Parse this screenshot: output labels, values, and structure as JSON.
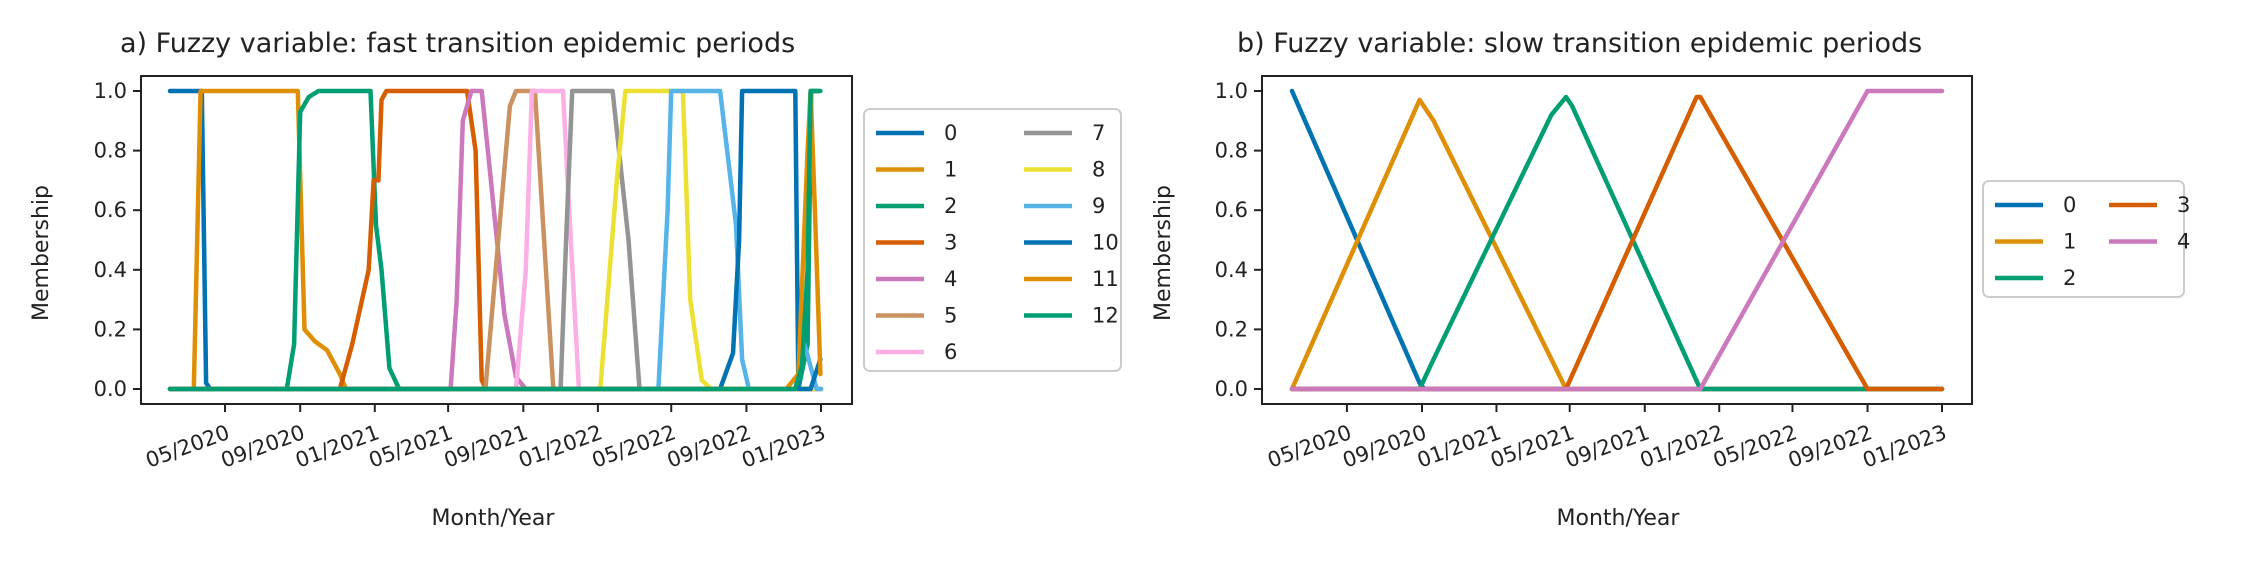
{
  "chart_data": [
    {
      "type": "line",
      "title": "a) Fuzzy variable: fast transition epidemic periods",
      "xlabel": "Month/Year",
      "ylabel": "Membership",
      "x_range": [
        "2020-02-01",
        "2023-01-01"
      ],
      "x_ticks": [
        "05/2020",
        "09/2020",
        "01/2021",
        "05/2021",
        "09/2021",
        "01/2022",
        "05/2022",
        "09/2022",
        "01/2023"
      ],
      "ylim": [
        0,
        1
      ],
      "y_ticks": [
        "0.0",
        "0.2",
        "0.4",
        "0.6",
        "0.8",
        "1.0"
      ],
      "legend": "right, 2 columns",
      "series": [
        {
          "name": "0",
          "color": "#0173b2",
          "points": [
            [
              "2020-02-01",
              1
            ],
            [
              "2020-03-24",
              1
            ],
            [
              "2020-03-31",
              0.02
            ],
            [
              "2020-04-07",
              0
            ],
            [
              "2023-01-01",
              0
            ]
          ]
        },
        {
          "name": "1",
          "color": "#de8f05",
          "points": [
            [
              "2020-02-01",
              0
            ],
            [
              "2020-03-11",
              0
            ],
            [
              "2020-03-22",
              1
            ],
            [
              "2020-08-28",
              1
            ],
            [
              "2020-09-08",
              0.2
            ],
            [
              "2020-09-25",
              0.16
            ],
            [
              "2020-10-15",
              0.13
            ],
            [
              "2020-11-05",
              0.05
            ],
            [
              "2020-11-15",
              0
            ],
            [
              "2023-01-01",
              0
            ]
          ]
        },
        {
          "name": "2",
          "color": "#029e73",
          "points": [
            [
              "2020-02-01",
              0
            ],
            [
              "2020-08-10",
              0
            ],
            [
              "2020-08-22",
              0.15
            ],
            [
              "2020-09-01",
              0.93
            ],
            [
              "2020-09-15",
              0.98
            ],
            [
              "2020-10-01",
              1
            ],
            [
              "2020-12-25",
              1
            ],
            [
              "2021-01-03",
              0.55
            ],
            [
              "2021-01-12",
              0.4
            ],
            [
              "2021-01-25",
              0.07
            ],
            [
              "2021-02-10",
              0
            ],
            [
              "2022-11-25",
              0
            ],
            [
              "2022-12-10",
              0.15
            ],
            [
              "2022-12-16",
              1
            ],
            [
              "2022-12-28",
              1
            ]
          ]
        },
        {
          "name": "3",
          "color": "#d55e00",
          "points": [
            [
              "2020-02-01",
              0
            ],
            [
              "2020-11-05",
              0
            ],
            [
              "2020-11-25",
              0.15
            ],
            [
              "2020-12-22",
              0.4
            ],
            [
              "2020-12-30",
              0.7
            ],
            [
              "2021-01-07",
              0.7
            ],
            [
              "2021-01-12",
              0.97
            ],
            [
              "2021-01-20",
              1
            ],
            [
              "2021-06-01",
              1
            ],
            [
              "2021-06-15",
              0.8
            ],
            [
              "2021-06-25",
              0.03
            ],
            [
              "2021-07-02",
              0
            ],
            [
              "2023-01-01",
              0
            ]
          ]
        },
        {
          "name": "4",
          "color": "#cc78bc",
          "points": [
            [
              "2020-02-01",
              0
            ],
            [
              "2021-05-05",
              0
            ],
            [
              "2021-05-15",
              0.3
            ],
            [
              "2021-05-25",
              0.9
            ],
            [
              "2021-06-08",
              1
            ],
            [
              "2021-06-25",
              1
            ],
            [
              "2021-07-10",
              0.7
            ],
            [
              "2021-08-01",
              0.25
            ],
            [
              "2021-08-20",
              0.04
            ],
            [
              "2021-09-05",
              0
            ],
            [
              "2023-01-01",
              0
            ]
          ]
        },
        {
          "name": "5",
          "color": "#ca9161",
          "points": [
            [
              "2020-02-01",
              0
            ],
            [
              "2021-07-01",
              0
            ],
            [
              "2021-07-20",
              0.45
            ],
            [
              "2021-08-10",
              0.95
            ],
            [
              "2021-08-20",
              1
            ],
            [
              "2021-09-20",
              1
            ],
            [
              "2021-10-05",
              0.5
            ],
            [
              "2021-10-20",
              0
            ],
            [
              "2023-01-01",
              0
            ]
          ]
        },
        {
          "name": "6",
          "color": "#fbafe4",
          "points": [
            [
              "2020-02-01",
              0
            ],
            [
              "2021-08-20",
              0
            ],
            [
              "2021-09-05",
              0.4
            ],
            [
              "2021-09-15",
              1
            ],
            [
              "2021-11-05",
              1
            ],
            [
              "2021-11-15",
              0.6
            ],
            [
              "2021-12-01",
              0
            ],
            [
              "2023-01-01",
              0
            ]
          ]
        },
        {
          "name": "7",
          "color": "#949494",
          "points": [
            [
              "2020-02-01",
              0
            ],
            [
              "2021-11-01",
              0
            ],
            [
              "2021-11-10",
              0.5
            ],
            [
              "2021-11-20",
              1
            ],
            [
              "2022-01-25",
              1
            ],
            [
              "2022-02-20",
              0.5
            ],
            [
              "2022-03-10",
              0
            ],
            [
              "2023-01-01",
              0
            ]
          ]
        },
        {
          "name": "8",
          "color": "#ece133",
          "points": [
            [
              "2020-02-01",
              0
            ],
            [
              "2022-01-05",
              0
            ],
            [
              "2022-02-01",
              0.7
            ],
            [
              "2022-02-15",
              1
            ],
            [
              "2022-05-20",
              1
            ],
            [
              "2022-06-01",
              0.3
            ],
            [
              "2022-06-20",
              0.03
            ],
            [
              "2022-07-05",
              0
            ],
            [
              "2023-01-01",
              0
            ]
          ]
        },
        {
          "name": "9",
          "color": "#56b4e9",
          "points": [
            [
              "2020-02-01",
              0
            ],
            [
              "2022-04-10",
              0
            ],
            [
              "2022-04-25",
              0.6
            ],
            [
              "2022-05-01",
              1
            ],
            [
              "2022-07-20",
              1
            ],
            [
              "2022-08-15",
              0.55
            ],
            [
              "2022-08-25",
              0.1
            ],
            [
              "2022-09-05",
              0
            ],
            [
              "2022-11-20",
              0
            ],
            [
              "2022-12-05",
              0.15
            ],
            [
              "2022-12-25",
              0
            ],
            [
              "2023-01-01",
              0
            ]
          ]
        },
        {
          "name": "10",
          "color": "#0173b2",
          "points": [
            [
              "2020-02-01",
              0
            ],
            [
              "2022-07-20",
              0
            ],
            [
              "2022-08-10",
              0.12
            ],
            [
              "2022-08-20",
              0.5
            ],
            [
              "2022-08-25",
              1
            ],
            [
              "2022-11-20",
              1
            ],
            [
              "2022-11-25",
              0
            ],
            [
              "2022-12-15",
              0
            ],
            [
              "2022-12-31",
              0.1
            ]
          ]
        },
        {
          "name": "11",
          "color": "#de8f05",
          "points": [
            [
              "2020-02-01",
              0
            ],
            [
              "2022-11-05",
              0
            ],
            [
              "2022-11-25",
              0.05
            ],
            [
              "2022-12-10",
              0.8
            ],
            [
              "2022-12-15",
              1
            ],
            [
              "2022-12-22",
              0.6
            ],
            [
              "2022-12-31",
              0.05
            ]
          ]
        },
        {
          "name": "12",
          "color": "#029e73",
          "points": [
            [
              "2020-02-01",
              0
            ],
            [
              "2022-11-20",
              0
            ],
            [
              "2022-12-01",
              0.08
            ],
            [
              "2022-12-10",
              0.4
            ],
            [
              "2022-12-15",
              1
            ],
            [
              "2022-12-31",
              1
            ]
          ]
        }
      ]
    },
    {
      "type": "line",
      "title": "b) Fuzzy variable: slow transition epidemic periods",
      "xlabel": "Month/Year",
      "ylabel": "Membership",
      "x_range": [
        "2020-02-01",
        "2023-01-01"
      ],
      "x_ticks": [
        "05/2020",
        "09/2020",
        "01/2021",
        "05/2021",
        "09/2021",
        "01/2022",
        "05/2022",
        "09/2022",
        "01/2023"
      ],
      "ylim": [
        0,
        1
      ],
      "y_ticks": [
        "0.0",
        "0.2",
        "0.4",
        "0.6",
        "0.8",
        "1.0"
      ],
      "legend": "right, 2 columns",
      "series": [
        {
          "name": "0",
          "color": "#0173b2",
          "points": [
            [
              "2020-02-01",
              1
            ],
            [
              "2020-08-28",
              0.02
            ],
            [
              "2020-09-05",
              0
            ],
            [
              "2023-01-01",
              0
            ]
          ]
        },
        {
          "name": "1",
          "color": "#de8f05",
          "points": [
            [
              "2020-02-01",
              0
            ],
            [
              "2020-08-28",
              0.97
            ],
            [
              "2020-09-20",
              0.9
            ],
            [
              "2021-04-01",
              0.1
            ],
            [
              "2021-04-25",
              0
            ],
            [
              "2023-01-01",
              0
            ]
          ]
        },
        {
          "name": "2",
          "color": "#029e73",
          "points": [
            [
              "2020-02-01",
              0
            ],
            [
              "2020-08-28",
              0
            ],
            [
              "2020-09-20",
              0.1
            ],
            [
              "2021-04-01",
              0.92
            ],
            [
              "2021-04-25",
              0.98
            ],
            [
              "2021-05-05",
              0.95
            ],
            [
              "2021-12-01",
              0
            ],
            [
              "2023-01-01",
              0
            ]
          ]
        },
        {
          "name": "3",
          "color": "#d55e00",
          "points": [
            [
              "2020-02-01",
              0
            ],
            [
              "2021-04-25",
              0
            ],
            [
              "2021-11-25",
              0.98
            ],
            [
              "2021-12-01",
              0.98
            ],
            [
              "2022-09-01",
              0
            ],
            [
              "2023-01-01",
              0
            ]
          ]
        },
        {
          "name": "4",
          "color": "#cc78bc",
          "points": [
            [
              "2020-02-01",
              0
            ],
            [
              "2021-12-01",
              0
            ],
            [
              "2022-09-01",
              1
            ],
            [
              "2023-01-01",
              1
            ]
          ]
        }
      ]
    }
  ]
}
